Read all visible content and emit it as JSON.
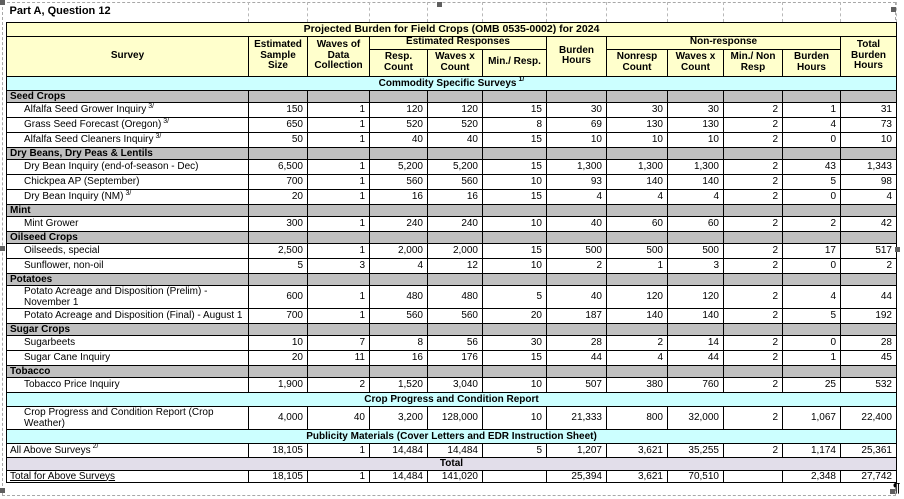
{
  "caption": {
    "text": "Part A, Question 12"
  },
  "pilcrow": "¶",
  "table": {
    "title": "Projected Burden for Field Crops (OMB 0535-0002) for 2024",
    "header": {
      "survey": "Survey",
      "sample_size": "Estimated Sample Size",
      "waves": "Waves of Data Collection",
      "est_responses_group": "Estimated Responses",
      "non_response_group": "Non-response",
      "resp_count": "Resp. Count",
      "waves_x_count_resp": "Waves x Count",
      "min_per_resp": "Min./ Resp.",
      "burden_hours_resp": "Burden Hours",
      "nonresp_count": "Nonresp Count",
      "waves_x_count_nonresp": "Waves x Count",
      "min_per_nonresp": "Min./ Non Resp",
      "burden_hours_nonresp": "Burden Hours",
      "total_burden_hours": "Total Burden Hours"
    },
    "rows": [
      {
        "type": "banner",
        "label": "Commodity Specific Surveys",
        "sup": "1/"
      },
      {
        "type": "section",
        "label": "Seed Crops"
      },
      {
        "type": "data",
        "label": "Alfalfa Seed Grower Inquiry",
        "sup": "3/",
        "cells": [
          "150",
          "1",
          "120",
          "120",
          "15",
          "30",
          "30",
          "30",
          "2",
          "1",
          "31"
        ]
      },
      {
        "type": "data",
        "label": "Grass Seed Forecast (Oregon)",
        "sup": "3/",
        "cells": [
          "650",
          "1",
          "520",
          "520",
          "8",
          "69",
          "130",
          "130",
          "2",
          "4",
          "73"
        ]
      },
      {
        "type": "data",
        "label": "Alfalfa Seed Cleaners Inquiry",
        "sup": "3/",
        "cells": [
          "50",
          "1",
          "40",
          "40",
          "15",
          "10",
          "10",
          "10",
          "2",
          "0",
          "10"
        ]
      },
      {
        "type": "section",
        "label": "Dry Beans, Dry Peas & Lentils"
      },
      {
        "type": "data",
        "label": "Dry Bean Inquiry (end-of-season - Dec)",
        "cells": [
          "6,500",
          "1",
          "5,200",
          "5,200",
          "15",
          "1,300",
          "1,300",
          "1,300",
          "2",
          "43",
          "1,343"
        ]
      },
      {
        "type": "data",
        "label": "Chickpea AP (September)",
        "cells": [
          "700",
          "1",
          "560",
          "560",
          "10",
          "93",
          "140",
          "140",
          "2",
          "5",
          "98"
        ]
      },
      {
        "type": "data",
        "label": "Dry Bean Inquiry (NM)",
        "sup": "3/",
        "cells": [
          "20",
          "1",
          "16",
          "16",
          "15",
          "4",
          "4",
          "4",
          "2",
          "0",
          "4"
        ]
      },
      {
        "type": "section",
        "label": "Mint"
      },
      {
        "type": "data",
        "label": "Mint Grower",
        "cells": [
          "300",
          "1",
          "240",
          "240",
          "10",
          "40",
          "60",
          "60",
          "2",
          "2",
          "42"
        ]
      },
      {
        "type": "section",
        "label": "Oilseed Crops"
      },
      {
        "type": "data",
        "label": "Oilseeds, special",
        "cells": [
          "2,500",
          "1",
          "2,000",
          "2,000",
          "15",
          "500",
          "500",
          "500",
          "2",
          "17",
          "517"
        ]
      },
      {
        "type": "data",
        "label": "Sunflower, non-oil",
        "cells": [
          "5",
          "3",
          "4",
          "12",
          "10",
          "2",
          "1",
          "3",
          "2",
          "0",
          "2"
        ]
      },
      {
        "type": "section",
        "label": "Potatoes"
      },
      {
        "type": "data",
        "label": "Potato Acreage and Disposition (Prelim) - November 1",
        "cells": [
          "600",
          "1",
          "480",
          "480",
          "5",
          "40",
          "120",
          "120",
          "2",
          "4",
          "44"
        ]
      },
      {
        "type": "data",
        "label": "Potato Acreage and Disposition (Final) - August 1",
        "cells": [
          "700",
          "1",
          "560",
          "560",
          "20",
          "187",
          "140",
          "140",
          "2",
          "5",
          "192"
        ]
      },
      {
        "type": "section",
        "label": "Sugar Crops"
      },
      {
        "type": "data",
        "label": "Sugarbeets",
        "cells": [
          "10",
          "7",
          "8",
          "56",
          "30",
          "28",
          "2",
          "14",
          "2",
          "0",
          "28"
        ]
      },
      {
        "type": "data",
        "label": "Sugar Cane Inquiry",
        "cells": [
          "20",
          "11",
          "16",
          "176",
          "15",
          "44",
          "4",
          "44",
          "2",
          "1",
          "45"
        ]
      },
      {
        "type": "section",
        "label": "Tobacco"
      },
      {
        "type": "data",
        "label": "Tobacco Price Inquiry",
        "cells": [
          "1,900",
          "2",
          "1,520",
          "3,040",
          "10",
          "507",
          "380",
          "760",
          "2",
          "25",
          "532"
        ]
      },
      {
        "type": "banner",
        "label": "Crop Progress and Condition Report"
      },
      {
        "type": "data",
        "label": "Crop Progress and Condition Report (Crop Weather)",
        "cells": [
          "4,000",
          "40",
          "3,200",
          "128,000",
          "10",
          "21,333",
          "800",
          "32,000",
          "2",
          "1,067",
          "22,400"
        ]
      },
      {
        "type": "banner",
        "label": "Publicity Materials (Cover Letters and EDR Instruction Sheet)"
      },
      {
        "type": "summary",
        "label": "All Above Surveys",
        "sup": "2/",
        "cells": [
          "18,105",
          "1",
          "14,484",
          "14,484",
          "5",
          "1,207",
          "3,621",
          "35,255",
          "2",
          "1,174",
          "25,361"
        ]
      },
      {
        "type": "total_banner",
        "label": "Total"
      },
      {
        "type": "total",
        "label": "Total for Above Surveys",
        "cells": [
          "18,105",
          "1",
          "14,484",
          "141,020",
          "",
          "25,394",
          "3,621",
          "70,510",
          "",
          "2,348",
          "27,742"
        ]
      }
    ]
  }
}
